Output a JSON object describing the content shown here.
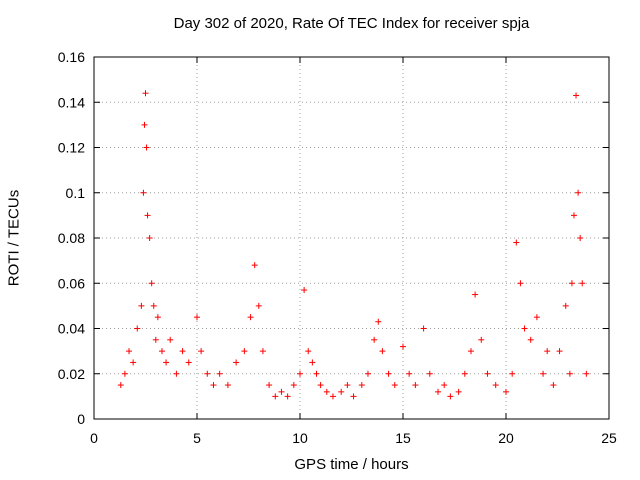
{
  "chart_data": {
    "type": "scatter",
    "title": "Day 302 of 2020, Rate Of TEC Index for receiver spja",
    "xlabel": "GPS time / hours",
    "ylabel": "ROTI / TECUs",
    "xlim": [
      0,
      25
    ],
    "ylim": [
      0,
      0.16
    ],
    "x_ticks": [
      "0",
      "5",
      "10",
      "15",
      "20",
      "25"
    ],
    "y_ticks": [
      "0",
      "0.02",
      "0.04",
      "0.06",
      "0.08",
      "0.1",
      "0.12",
      "0.14",
      "0.16"
    ],
    "grid": true,
    "marker": "+",
    "series_color": "#ff0000",
    "series": [
      {
        "x": [
          1.3,
          1.5,
          1.7,
          1.9,
          2.1,
          2.3,
          2.4,
          2.45,
          2.5,
          2.55,
          2.6,
          2.7,
          2.8,
          2.9,
          3.0,
          3.1,
          3.3,
          3.5,
          3.7,
          4.0,
          4.3,
          4.6,
          5.0,
          5.2,
          5.5,
          5.8,
          6.1,
          6.5,
          6.9,
          7.3,
          7.6,
          7.8,
          8.0,
          8.2,
          8.5,
          8.8,
          9.1,
          9.4,
          9.7,
          10.0,
          10.2,
          10.4,
          10.6,
          10.8,
          11.0,
          11.3,
          11.6,
          12.0,
          12.3,
          12.6,
          13.0,
          13.3,
          13.6,
          13.8,
          14.0,
          14.3,
          14.6,
          15.0,
          15.3,
          15.6,
          16.0,
          16.3,
          16.7,
          17.0,
          17.3,
          17.7,
          18.0,
          18.3,
          18.5,
          18.8,
          19.1,
          19.5,
          20.0,
          20.3,
          20.5,
          20.7,
          20.9,
          21.2,
          21.5,
          21.8,
          22.0,
          22.3,
          22.6,
          22.9,
          23.1,
          23.2,
          23.3,
          23.4,
          23.5,
          23.6,
          23.7,
          23.9
        ],
        "y": [
          0.015,
          0.02,
          0.03,
          0.025,
          0.04,
          0.05,
          0.1,
          0.13,
          0.144,
          0.12,
          0.09,
          0.08,
          0.06,
          0.05,
          0.035,
          0.045,
          0.03,
          0.025,
          0.035,
          0.02,
          0.03,
          0.025,
          0.045,
          0.03,
          0.02,
          0.015,
          0.02,
          0.015,
          0.025,
          0.03,
          0.045,
          0.068,
          0.05,
          0.03,
          0.015,
          0.01,
          0.012,
          0.01,
          0.015,
          0.02,
          0.057,
          0.03,
          0.025,
          0.02,
          0.015,
          0.012,
          0.01,
          0.012,
          0.015,
          0.01,
          0.015,
          0.02,
          0.035,
          0.043,
          0.03,
          0.02,
          0.015,
          0.032,
          0.02,
          0.015,
          0.04,
          0.02,
          0.012,
          0.015,
          0.01,
          0.012,
          0.02,
          0.03,
          0.055,
          0.035,
          0.02,
          0.015,
          0.012,
          0.02,
          0.078,
          0.06,
          0.04,
          0.035,
          0.045,
          0.02,
          0.03,
          0.015,
          0.03,
          0.05,
          0.02,
          0.06,
          0.09,
          0.143,
          0.1,
          0.08,
          0.06,
          0.02
        ]
      }
    ]
  }
}
